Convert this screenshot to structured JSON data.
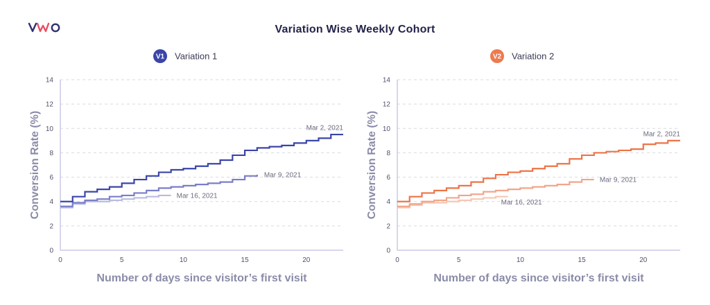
{
  "brand": {
    "logo_text": "VWO",
    "logo_color": "#2d2f6e",
    "logo_accent": "#e94e60"
  },
  "title": "Variation Wise Weekly Cohort",
  "chart_data": [
    {
      "type": "line",
      "step": true,
      "legend_badge": "V1",
      "legend_label": "Variation 1",
      "badge_color": "#3a45a8",
      "xlabel": "Number of days since visitor’s first visit",
      "ylabel": "Conversion Rate (%)",
      "xlim": [
        0,
        23
      ],
      "ylim": [
        0,
        14
      ],
      "xticks": [
        0,
        5,
        10,
        15,
        20
      ],
      "yticks": [
        0,
        2,
        4,
        6,
        8,
        10,
        12,
        14
      ],
      "grid": true,
      "series": [
        {
          "name": "Mar 2, 2021",
          "color": "#3a45a8",
          "x": [
            0,
            1,
            2,
            3,
            4,
            5,
            6,
            7,
            8,
            9,
            10,
            11,
            12,
            13,
            14,
            15,
            16,
            17,
            18,
            19,
            20,
            21,
            22,
            23
          ],
          "values": [
            4.0,
            4.4,
            4.8,
            5.0,
            5.2,
            5.5,
            5.8,
            6.1,
            6.4,
            6.6,
            6.7,
            6.9,
            7.1,
            7.4,
            7.8,
            8.2,
            8.4,
            8.5,
            8.6,
            8.8,
            9.0,
            9.2,
            9.5,
            9.5
          ]
        },
        {
          "name": "Mar 9, 2021",
          "color": "#7a7ec7",
          "x": [
            0,
            1,
            2,
            3,
            4,
            5,
            6,
            7,
            8,
            9,
            10,
            11,
            12,
            13,
            14,
            15,
            16
          ],
          "values": [
            3.6,
            3.9,
            4.1,
            4.2,
            4.4,
            4.5,
            4.7,
            4.9,
            5.1,
            5.2,
            5.3,
            5.4,
            5.5,
            5.6,
            5.8,
            6.1,
            6.2
          ]
        },
        {
          "name": "Mar 16, 2021",
          "color": "#b9bce0",
          "x": [
            0,
            1,
            2,
            3,
            4,
            5,
            6,
            7,
            8,
            9
          ],
          "values": [
            3.5,
            3.8,
            4.0,
            4.0,
            4.1,
            4.2,
            4.3,
            4.4,
            4.5,
            4.5
          ]
        }
      ]
    },
    {
      "type": "line",
      "step": true,
      "legend_badge": "V2",
      "legend_label": "Variation 2",
      "badge_color": "#ee7a50",
      "xlabel": "Number of days since visitor’s first visit",
      "ylabel": "Conversion Rate (%)",
      "xlim": [
        0,
        23
      ],
      "ylim": [
        0,
        14
      ],
      "xticks": [
        0,
        5,
        10,
        15,
        20
      ],
      "yticks": [
        0,
        2,
        4,
        6,
        8,
        10,
        12,
        14
      ],
      "grid": true,
      "series": [
        {
          "name": "Mar 2, 2021",
          "color": "#ec7447",
          "x": [
            0,
            1,
            2,
            3,
            4,
            5,
            6,
            7,
            8,
            9,
            10,
            11,
            12,
            13,
            14,
            15,
            16,
            17,
            18,
            19,
            20,
            21,
            22,
            23
          ],
          "values": [
            4.0,
            4.4,
            4.7,
            4.9,
            5.1,
            5.3,
            5.6,
            5.9,
            6.2,
            6.4,
            6.5,
            6.7,
            6.9,
            7.1,
            7.5,
            7.8,
            8.0,
            8.1,
            8.2,
            8.3,
            8.7,
            8.8,
            9.0,
            9.0
          ]
        },
        {
          "name": "Mar 9, 2021",
          "color": "#f2a58a",
          "x": [
            0,
            1,
            2,
            3,
            4,
            5,
            6,
            7,
            8,
            9,
            10,
            11,
            12,
            13,
            14,
            15,
            16
          ],
          "values": [
            3.6,
            3.8,
            4.0,
            4.1,
            4.3,
            4.5,
            4.6,
            4.8,
            4.9,
            5.0,
            5.1,
            5.2,
            5.3,
            5.4,
            5.6,
            5.8,
            5.8
          ]
        },
        {
          "name": "Mar 16, 2021",
          "color": "#f7c6b3",
          "x": [
            0,
            1,
            2,
            3,
            4,
            5,
            6,
            7,
            8,
            9
          ],
          "values": [
            3.5,
            3.7,
            3.9,
            3.9,
            4.0,
            4.1,
            4.2,
            4.3,
            4.4,
            4.4
          ]
        }
      ]
    }
  ]
}
